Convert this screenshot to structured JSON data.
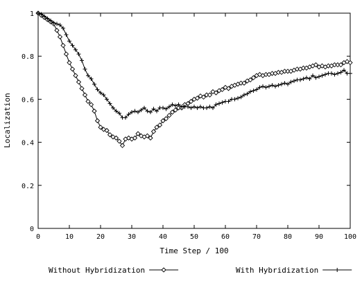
{
  "chart_data": {
    "type": "line",
    "title": "",
    "xlabel": "Time Step / 100",
    "ylabel": "Localization",
    "xlim": [
      0,
      100
    ],
    "ylim": [
      0,
      1
    ],
    "x_ticks": [
      "0",
      "10",
      "20",
      "30",
      "40",
      "50",
      "60",
      "70",
      "80",
      "90",
      "100"
    ],
    "y_ticks": [
      "0",
      "0.2",
      "0.4",
      "0.6",
      "0.8",
      "1"
    ],
    "grid": false,
    "legend_position": "bottom",
    "series": [
      {
        "name": "Without Hybridization",
        "marker": "diamond",
        "x": [
          0,
          1,
          2,
          3,
          4,
          5,
          6,
          7,
          8,
          9,
          10,
          11,
          12,
          13,
          14,
          15,
          16,
          17,
          18,
          19,
          20,
          21,
          22,
          23,
          24,
          25,
          26,
          27,
          28,
          29,
          30,
          31,
          32,
          33,
          34,
          35,
          36,
          37,
          38,
          39,
          40,
          41,
          42,
          43,
          44,
          45,
          46,
          47,
          48,
          49,
          50,
          51,
          52,
          53,
          54,
          55,
          56,
          57,
          58,
          59,
          60,
          61,
          62,
          63,
          64,
          65,
          66,
          67,
          68,
          69,
          70,
          71,
          72,
          73,
          74,
          75,
          76,
          77,
          78,
          79,
          80,
          81,
          82,
          83,
          84,
          85,
          86,
          87,
          88,
          89,
          90,
          91,
          92,
          93,
          94,
          95,
          96,
          97,
          98,
          99,
          100
        ],
        "y": [
          1.0,
          0.99,
          0.98,
          0.97,
          0.96,
          0.95,
          0.92,
          0.89,
          0.85,
          0.81,
          0.77,
          0.74,
          0.71,
          0.68,
          0.65,
          0.62,
          0.59,
          0.575,
          0.545,
          0.5,
          0.47,
          0.46,
          0.455,
          0.435,
          0.425,
          0.42,
          0.405,
          0.385,
          0.415,
          0.42,
          0.415,
          0.42,
          0.44,
          0.43,
          0.425,
          0.43,
          0.42,
          0.45,
          0.47,
          0.48,
          0.5,
          0.51,
          0.525,
          0.54,
          0.55,
          0.56,
          0.56,
          0.575,
          0.58,
          0.59,
          0.6,
          0.605,
          0.615,
          0.61,
          0.62,
          0.62,
          0.635,
          0.63,
          0.64,
          0.645,
          0.655,
          0.65,
          0.66,
          0.665,
          0.67,
          0.675,
          0.675,
          0.685,
          0.69,
          0.7,
          0.71,
          0.715,
          0.71,
          0.715,
          0.715,
          0.72,
          0.72,
          0.725,
          0.725,
          0.73,
          0.73,
          0.73,
          0.735,
          0.74,
          0.74,
          0.745,
          0.745,
          0.75,
          0.755,
          0.76,
          0.75,
          0.755,
          0.75,
          0.755,
          0.755,
          0.76,
          0.76,
          0.76,
          0.77,
          0.775,
          0.77
        ]
      },
      {
        "name": "With Hybridization",
        "marker": "plus",
        "x": [
          0,
          1,
          2,
          3,
          4,
          5,
          6,
          7,
          8,
          9,
          10,
          11,
          12,
          13,
          14,
          15,
          16,
          17,
          18,
          19,
          20,
          21,
          22,
          23,
          24,
          25,
          26,
          27,
          28,
          29,
          30,
          31,
          32,
          33,
          34,
          35,
          36,
          37,
          38,
          39,
          40,
          41,
          42,
          43,
          44,
          45,
          46,
          47,
          48,
          49,
          50,
          51,
          52,
          53,
          54,
          55,
          56,
          57,
          58,
          59,
          60,
          61,
          62,
          63,
          64,
          65,
          66,
          67,
          68,
          69,
          70,
          71,
          72,
          73,
          74,
          75,
          76,
          77,
          78,
          79,
          80,
          81,
          82,
          83,
          84,
          85,
          86,
          87,
          88,
          89,
          90,
          91,
          92,
          93,
          94,
          95,
          96,
          97,
          98,
          99,
          100
        ],
        "y": [
          1.0,
          0.995,
          0.985,
          0.975,
          0.965,
          0.955,
          0.95,
          0.945,
          0.93,
          0.9,
          0.87,
          0.85,
          0.83,
          0.81,
          0.78,
          0.74,
          0.71,
          0.695,
          0.67,
          0.645,
          0.63,
          0.62,
          0.6,
          0.58,
          0.56,
          0.545,
          0.535,
          0.515,
          0.515,
          0.53,
          0.54,
          0.545,
          0.54,
          0.55,
          0.56,
          0.545,
          0.54,
          0.555,
          0.545,
          0.56,
          0.56,
          0.555,
          0.565,
          0.575,
          0.57,
          0.575,
          0.565,
          0.565,
          0.565,
          0.56,
          0.565,
          0.56,
          0.565,
          0.56,
          0.56,
          0.565,
          0.56,
          0.575,
          0.58,
          0.585,
          0.59,
          0.59,
          0.6,
          0.6,
          0.605,
          0.61,
          0.62,
          0.625,
          0.635,
          0.64,
          0.645,
          0.655,
          0.66,
          0.655,
          0.66,
          0.665,
          0.66,
          0.665,
          0.67,
          0.675,
          0.67,
          0.68,
          0.685,
          0.69,
          0.69,
          0.695,
          0.7,
          0.695,
          0.71,
          0.7,
          0.705,
          0.71,
          0.715,
          0.72,
          0.72,
          0.715,
          0.72,
          0.725,
          0.735,
          0.72,
          0.72
        ]
      }
    ]
  }
}
